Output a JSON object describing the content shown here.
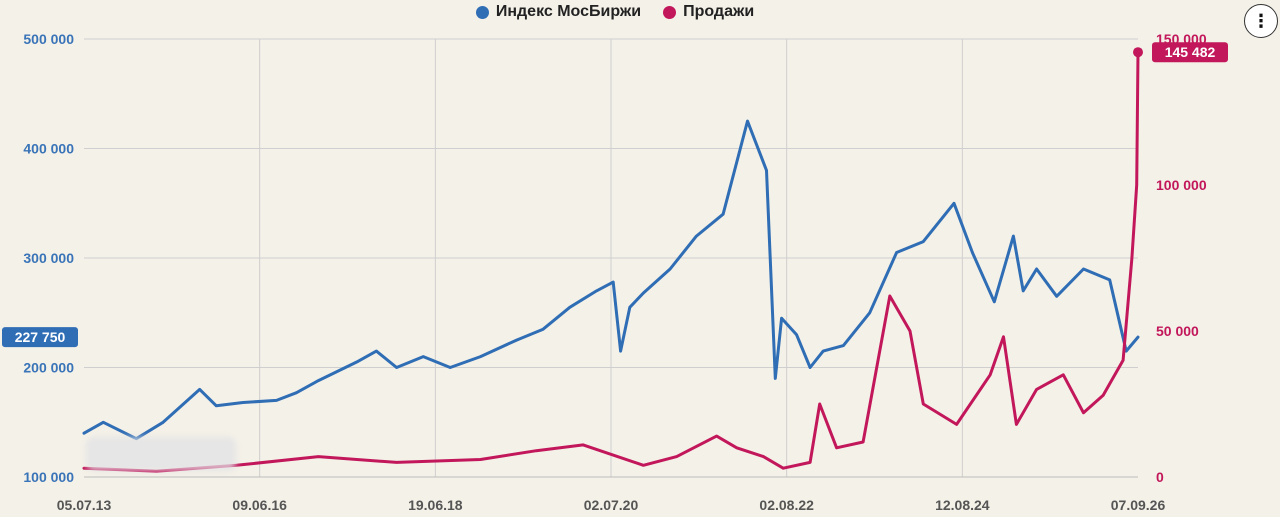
{
  "legend": {
    "series1_label": "Индекс МосБиржи",
    "series2_label": "Продажи"
  },
  "menu": {
    "icon": "⋮"
  },
  "colors": {
    "index": "#2f6db5",
    "sales": "#c2185b",
    "background": "#f4f1e8",
    "grid": "#cfcfcf"
  },
  "chart_data": {
    "type": "line",
    "x_tick_labels": [
      "05.07.13",
      "09.06.16",
      "19.06.18",
      "02.07.20",
      "02.08.22",
      "12.08.24",
      "07.09.26"
    ],
    "left_axis": {
      "ticks": [
        "100 000",
        "200 000",
        "300 000",
        "400 000",
        "500 000"
      ],
      "range": [
        100000,
        500000
      ]
    },
    "right_axis": {
      "ticks": [
        "0",
        "50 000",
        "100 000",
        "150 000"
      ],
      "range": [
        0,
        150000
      ]
    },
    "grid": true,
    "legend_position": "top-center",
    "x_range": [
      "2013-07-05",
      "2026-09-07"
    ],
    "series": [
      {
        "name": "Индекс МосБиржи",
        "axis": "left",
        "current_label": "227 750",
        "points": [
          [
            "2013-07-05",
            140000
          ],
          [
            "2013-10-01",
            150000
          ],
          [
            "2014-03-01",
            135000
          ],
          [
            "2014-07-01",
            150000
          ],
          [
            "2014-12-15",
            180000
          ],
          [
            "2015-03-01",
            165000
          ],
          [
            "2015-07-01",
            168000
          ],
          [
            "2015-12-01",
            170000
          ],
          [
            "2016-03-01",
            177000
          ],
          [
            "2016-06-09",
            188000
          ],
          [
            "2016-12-01",
            205000
          ],
          [
            "2017-03-01",
            215000
          ],
          [
            "2017-06-01",
            200000
          ],
          [
            "2017-10-01",
            210000
          ],
          [
            "2018-02-01",
            200000
          ],
          [
            "2018-06-19",
            210000
          ],
          [
            "2018-12-01",
            225000
          ],
          [
            "2019-04-01",
            235000
          ],
          [
            "2019-08-01",
            255000
          ],
          [
            "2019-12-01",
            270000
          ],
          [
            "2020-02-15",
            278000
          ],
          [
            "2020-03-20",
            215000
          ],
          [
            "2020-05-01",
            255000
          ],
          [
            "2020-07-02",
            268000
          ],
          [
            "2020-11-01",
            290000
          ],
          [
            "2021-03-01",
            320000
          ],
          [
            "2021-07-01",
            340000
          ],
          [
            "2021-10-20",
            425000
          ],
          [
            "2022-01-15",
            380000
          ],
          [
            "2022-02-24",
            190000
          ],
          [
            "2022-03-25",
            245000
          ],
          [
            "2022-06-01",
            230000
          ],
          [
            "2022-08-02",
            200000
          ],
          [
            "2022-10-01",
            215000
          ],
          [
            "2023-01-01",
            220000
          ],
          [
            "2023-05-01",
            250000
          ],
          [
            "2023-09-01",
            305000
          ],
          [
            "2024-01-01",
            315000
          ],
          [
            "2024-05-20",
            350000
          ],
          [
            "2024-08-12",
            305000
          ],
          [
            "2024-11-20",
            260000
          ],
          [
            "2025-02-15",
            320000
          ],
          [
            "2025-04-01",
            270000
          ],
          [
            "2025-06-01",
            290000
          ],
          [
            "2025-09-01",
            265000
          ],
          [
            "2026-01-01",
            290000
          ],
          [
            "2026-05-01",
            280000
          ],
          [
            "2026-07-15",
            215000
          ],
          [
            "2026-09-07",
            227750
          ]
        ]
      },
      {
        "name": "Продажи",
        "axis": "right",
        "current_label": "145 482",
        "points": [
          [
            "2013-07-05",
            3000
          ],
          [
            "2014-06-01",
            2000
          ],
          [
            "2015-06-01",
            4000
          ],
          [
            "2016-06-09",
            7000
          ],
          [
            "2017-06-01",
            5000
          ],
          [
            "2018-06-19",
            6000
          ],
          [
            "2019-03-01",
            9000
          ],
          [
            "2019-10-01",
            11000
          ],
          [
            "2020-07-02",
            4000
          ],
          [
            "2020-12-01",
            7000
          ],
          [
            "2021-06-01",
            14000
          ],
          [
            "2021-09-01",
            10000
          ],
          [
            "2022-01-01",
            7000
          ],
          [
            "2022-04-01",
            3000
          ],
          [
            "2022-08-02",
            5000
          ],
          [
            "2022-09-15",
            25000
          ],
          [
            "2022-12-01",
            10000
          ],
          [
            "2023-04-01",
            12000
          ],
          [
            "2023-08-01",
            62000
          ],
          [
            "2023-11-01",
            50000
          ],
          [
            "2024-01-01",
            25000
          ],
          [
            "2024-06-01",
            18000
          ],
          [
            "2024-11-01",
            35000
          ],
          [
            "2025-01-01",
            48000
          ],
          [
            "2025-03-01",
            18000
          ],
          [
            "2025-06-01",
            30000
          ],
          [
            "2025-10-01",
            35000
          ],
          [
            "2026-01-01",
            22000
          ],
          [
            "2026-04-01",
            28000
          ],
          [
            "2026-07-01",
            40000
          ],
          [
            "2026-08-10",
            75000
          ],
          [
            "2026-09-01",
            100000
          ],
          [
            "2026-09-07",
            145482
          ]
        ]
      }
    ]
  }
}
